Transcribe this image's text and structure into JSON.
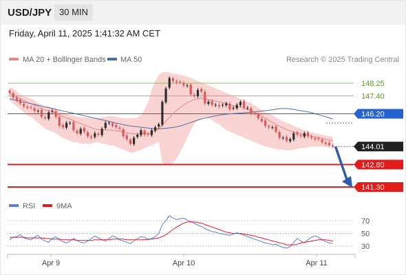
{
  "header": {
    "symbol": "USD/JPY",
    "timeframe": "30 MIN"
  },
  "datetime": "Friday, April 11, 2025 1:41:32 AM CET",
  "credit": "Research © 2025 Trading Central",
  "colors": {
    "candle_up": "#2e2e2e",
    "candle_down": "#e05757",
    "ma20": "#e58888",
    "bollinger_band": "#f8c4c4",
    "ma50": "#4a6fa5",
    "resistance": "#8cc465",
    "resistance_text": "#5a9f2a",
    "pivot": "#2463d4",
    "support": "#e21b1b",
    "arrow": "#2b5ea7",
    "rsi": "#5b7fe0",
    "rsi_ma": "#e21b1b"
  },
  "chart_data": [
    {
      "type": "candlestick",
      "title": "USD/JPY",
      "timeframe": "30 MIN",
      "x_labels": [
        "Apr 9",
        "Apr 10",
        "Apr 11"
      ],
      "ylim": [
        140.8,
        149.0
      ],
      "grid": false,
      "legend": {
        "position": "top-left",
        "entries": [
          "MA 20 + Bollinger Bands",
          "MA 50"
        ]
      },
      "levels": [
        {
          "label": "148.25",
          "value": 148.25,
          "kind": "resistance"
        },
        {
          "label": "147.40",
          "value": 147.4,
          "kind": "resistance"
        },
        {
          "label": "146.20",
          "value": 146.2,
          "kind": "pivot"
        },
        {
          "label": "144.01",
          "value": 144.01,
          "kind": "last"
        },
        {
          "label": "142.80",
          "value": 142.8,
          "kind": "support"
        },
        {
          "label": "141.30",
          "value": 141.3,
          "kind": "support"
        }
      ],
      "last_price": 144.01,
      "forecast_target": 141.3,
      "closes": [
        147.6,
        147.3,
        147.1,
        146.9,
        146.7,
        146.6,
        146.6,
        146.4,
        146.4,
        146.0,
        145.9,
        146.3,
        146.4,
        146.0,
        145.4,
        145.3,
        145.6,
        145.6,
        145.1,
        144.9,
        145.2,
        145.0,
        144.7,
        144.6,
        144.9,
        144.8,
        145.2,
        145.6,
        145.6,
        145.4,
        145.3,
        145.2,
        144.7,
        144.5,
        144.2,
        144.6,
        144.8,
        145.1,
        144.8,
        144.8,
        145.1,
        145.3,
        145.5,
        147.0,
        147.9,
        148.6,
        148.4,
        148.3,
        148.3,
        148.1,
        148.1,
        147.5,
        147.4,
        147.8,
        147.7,
        146.9,
        147.0,
        146.8,
        146.8,
        146.7,
        146.8,
        146.9,
        146.5,
        146.6,
        146.8,
        147.0,
        146.6,
        146.6,
        146.2,
        146.2,
        145.9,
        145.7,
        145.4,
        145.3,
        145.3,
        145.0,
        144.6,
        144.6,
        144.4,
        144.5,
        144.9,
        144.8,
        144.7,
        144.9,
        144.7,
        144.6,
        144.5,
        144.5,
        144.3,
        144.2,
        144.1,
        144.01
      ],
      "ma20": [
        147.6,
        147.45,
        147.33,
        147.2,
        147.1,
        146.95,
        146.88,
        146.78,
        146.68,
        146.56,
        146.45,
        146.42,
        146.36,
        146.25,
        146.1,
        146.0,
        145.92,
        145.85,
        145.75,
        145.63,
        145.55,
        145.45,
        145.36,
        145.28,
        145.18,
        145.15,
        145.13,
        145.12,
        145.12,
        145.1,
        145.05,
        145.02,
        144.98,
        144.92,
        144.87,
        144.85,
        144.85,
        144.86,
        144.87,
        144.88,
        144.94,
        145.05,
        145.2,
        145.45,
        145.7,
        145.95,
        146.2,
        146.42,
        146.62,
        146.8,
        146.95,
        147.05,
        147.15,
        147.2,
        147.25,
        147.22,
        147.15,
        147.12,
        147.05,
        147.0,
        146.95,
        146.9,
        146.82,
        146.75,
        146.7,
        146.65,
        146.58,
        146.5,
        146.4,
        146.3,
        146.2,
        146.05,
        145.9,
        145.76,
        145.62,
        145.5,
        145.37,
        145.25,
        145.15,
        145.05,
        144.98,
        144.92,
        144.86,
        144.8,
        144.75,
        144.7,
        144.65,
        144.6,
        144.55,
        144.5,
        144.45,
        144.4
      ],
      "ma50": [
        147.2,
        147.1,
        147.0,
        146.9,
        146.8,
        146.7,
        146.6,
        146.5,
        146.4,
        146.3,
        146.2,
        146.1,
        146.0,
        145.9,
        145.8,
        145.7,
        145.6,
        145.5,
        145.4,
        145.35,
        145.3,
        145.25,
        145.2,
        145.2,
        145.25,
        145.3,
        145.4,
        145.55,
        145.7,
        145.85,
        145.95,
        146.05,
        146.12,
        146.18,
        146.22,
        146.25,
        146.28,
        146.32,
        146.38,
        146.42,
        146.48,
        146.55,
        146.55,
        146.5,
        146.42,
        146.35,
        146.25,
        146.12,
        146.0,
        145.85
      ],
      "bollinger_upper": [
        148.0,
        147.9,
        147.7,
        147.5,
        147.4,
        147.3,
        147.2,
        147.1,
        146.9,
        146.8,
        146.7,
        146.7,
        146.6,
        146.5,
        146.4,
        146.3,
        146.2,
        146.1,
        146.1,
        146.0,
        146.0,
        145.95,
        145.9,
        145.9,
        145.9,
        145.9,
        145.95,
        146.0,
        146.05,
        146.05,
        146.0,
        145.95,
        145.9,
        145.9,
        145.9,
        145.9,
        145.95,
        146.1,
        146.5,
        147.0,
        147.8,
        148.4,
        148.8,
        149.0,
        149.0,
        148.95,
        148.9,
        148.85,
        148.8,
        148.75,
        148.7,
        148.6,
        148.5,
        148.4,
        148.3,
        148.2,
        148.1,
        148.0,
        147.9,
        147.8,
        147.7,
        147.6,
        147.5,
        147.4,
        147.3,
        147.2,
        147.1,
        147.0,
        146.9,
        146.75,
        146.6,
        146.45,
        146.3,
        146.2,
        146.1,
        145.95,
        145.8,
        145.7,
        145.6,
        145.5,
        145.4,
        145.3,
        145.2,
        145.1,
        145.0,
        144.95,
        144.9,
        144.85,
        144.8,
        144.75,
        144.7,
        144.65
      ],
      "bollinger_lower": [
        147.1,
        146.9,
        146.7,
        146.5,
        146.3,
        146.1,
        146.0,
        145.8,
        145.6,
        145.4,
        145.2,
        145.1,
        145.0,
        144.9,
        144.7,
        144.6,
        144.5,
        144.4,
        144.3,
        144.3,
        144.2,
        144.2,
        144.2,
        144.2,
        144.3,
        144.3,
        144.2,
        144.2,
        144.1,
        144.1,
        144.0,
        143.9,
        143.8,
        143.7,
        143.6,
        143.6,
        143.7,
        143.8,
        143.9,
        144.0,
        144.1,
        144.2,
        144.3,
        142.9,
        142.8,
        142.8,
        142.9,
        143.2,
        143.6,
        144.1,
        144.6,
        145.1,
        145.5,
        145.8,
        145.9,
        146.0,
        145.9,
        145.8,
        145.6,
        145.5,
        145.3,
        145.1,
        145.0,
        144.9,
        144.8,
        144.7,
        144.6,
        144.5,
        144.4,
        144.3,
        144.2,
        144.1,
        144.0,
        143.95,
        143.9,
        143.85,
        143.8,
        143.8,
        143.75,
        143.75,
        143.8,
        143.85,
        143.9,
        143.9,
        143.95,
        144.0,
        144.0,
        144.0,
        144.0,
        144.0,
        144.0,
        144.0
      ]
    },
    {
      "type": "line",
      "title": "RSI",
      "legend": {
        "position": "top-left",
        "entries": [
          "RSI",
          "9MA"
        ]
      },
      "yticks": [
        70,
        50,
        30
      ],
      "ylim": [
        15,
        85
      ],
      "series": [
        {
          "name": "RSI",
          "values": [
            40,
            44,
            45,
            48,
            43,
            41,
            40,
            44,
            47,
            41,
            38,
            36,
            42,
            45,
            40,
            37,
            35,
            38,
            42,
            39,
            36,
            35,
            38,
            42,
            46,
            43,
            40,
            38,
            42,
            46,
            44,
            40,
            38,
            36,
            34,
            38,
            42,
            45,
            44,
            40,
            42,
            45,
            50,
            64,
            70,
            78,
            74,
            72,
            73,
            74,
            71,
            69,
            66,
            63,
            61,
            58,
            55,
            53,
            52,
            50,
            49,
            48,
            47,
            49,
            51,
            49,
            47,
            45,
            43,
            41,
            39,
            37,
            35,
            34,
            32,
            33,
            30,
            28,
            27,
            29,
            36,
            42,
            38,
            35,
            40,
            44,
            46,
            44,
            40,
            37,
            35,
            34
          ]
        },
        {
          "name": "9MA",
          "values": [
            44,
            44,
            44,
            44,
            44,
            43,
            43,
            43,
            43,
            43,
            42,
            42,
            41,
            41,
            41,
            40,
            40,
            40,
            40,
            39,
            39,
            39,
            39,
            39,
            40,
            40,
            40,
            40,
            40,
            41,
            41,
            41,
            41,
            40,
            40,
            40,
            40,
            40,
            40,
            41,
            41,
            42,
            43,
            45,
            48,
            52,
            56,
            60,
            63,
            66,
            68,
            68,
            68,
            67,
            66,
            64,
            62,
            60,
            58,
            56,
            54,
            52,
            51,
            50,
            50,
            50,
            49,
            48,
            47,
            46,
            44,
            43,
            41,
            40,
            38,
            37,
            35,
            34,
            32,
            32,
            32,
            33,
            35,
            36,
            37,
            38,
            39,
            40,
            40,
            40,
            39,
            38
          ]
        }
      ]
    }
  ]
}
